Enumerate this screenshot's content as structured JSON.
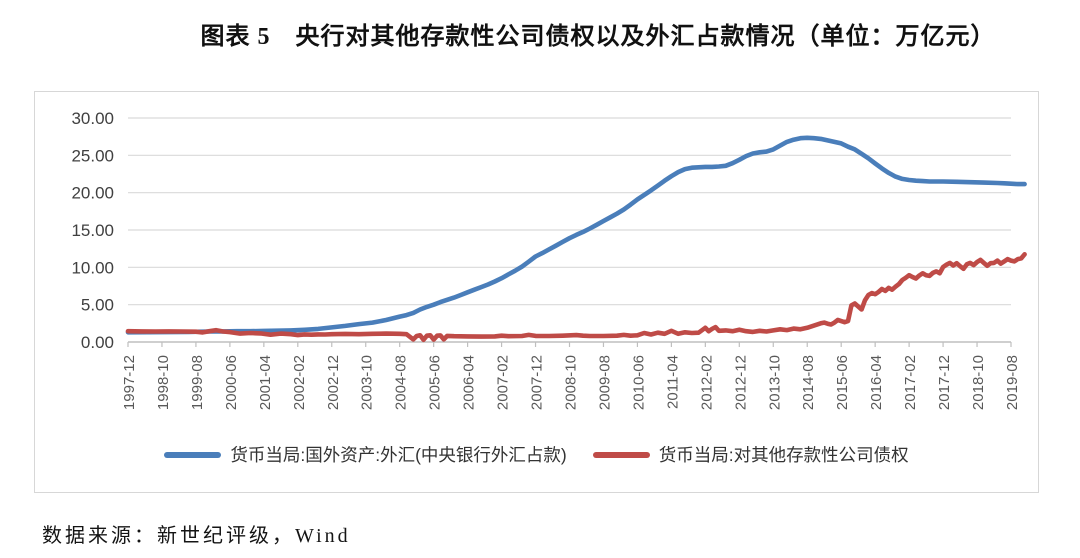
{
  "page": {
    "title": "图表 5　央行对其他存款性公司债权以及外汇占款情况（单位：万亿元）",
    "source_note": "数据来源：新世纪评级，Wind"
  },
  "chart_data": {
    "type": "line",
    "title": "央行对其他存款性公司债权以及外汇占款情况",
    "unit": "万亿元",
    "grid": true,
    "legend_position": "bottom",
    "y_axis": {
      "min": 0,
      "max": 30,
      "step": 5,
      "tick_labels": [
        "30.00",
        "25.00",
        "20.00",
        "15.00",
        "10.00",
        "5.00",
        "0.00"
      ]
    },
    "x_axis": {
      "start": "1997-12",
      "end": "2019-08",
      "tick_step_months": 10,
      "note": "series point x = months since 1997-12",
      "tick_labels": [
        "1997-12",
        "1998-10",
        "1999-08",
        "2000-06",
        "2001-04",
        "2002-02",
        "2002-12",
        "2003-10",
        "2004-08",
        "2005-06",
        "2006-04",
        "2007-02",
        "2007-12",
        "2008-10",
        "2009-08",
        "2010-06",
        "2011-04",
        "2012-02",
        "2012-12",
        "2013-10",
        "2014-08",
        "2015-06",
        "2016-04",
        "2017-02",
        "2017-12",
        "2018-10",
        "2019-08"
      ]
    },
    "series": [
      {
        "name": "货币当局:国外资产:外汇(中央银行外汇占款)",
        "color": "#4a7eba",
        "points": [
          [
            0,
            1.3
          ],
          [
            6,
            1.31
          ],
          [
            12,
            1.33
          ],
          [
            18,
            1.35
          ],
          [
            24,
            1.4
          ],
          [
            28,
            1.42
          ],
          [
            32,
            1.44
          ],
          [
            36,
            1.45
          ],
          [
            40,
            1.48
          ],
          [
            44,
            1.52
          ],
          [
            48,
            1.56
          ],
          [
            52,
            1.63
          ],
          [
            56,
            1.75
          ],
          [
            60,
            1.95
          ],
          [
            64,
            2.15
          ],
          [
            68,
            2.4
          ],
          [
            72,
            2.6
          ],
          [
            76,
            2.95
          ],
          [
            80,
            3.4
          ],
          [
            82,
            3.6
          ],
          [
            84,
            3.9
          ],
          [
            86,
            4.35
          ],
          [
            88,
            4.7
          ],
          [
            90,
            5.0
          ],
          [
            92,
            5.35
          ],
          [
            94,
            5.65
          ],
          [
            96,
            5.95
          ],
          [
            98,
            6.3
          ],
          [
            100,
            6.65
          ],
          [
            102,
            7.0
          ],
          [
            104,
            7.35
          ],
          [
            106,
            7.7
          ],
          [
            108,
            8.1
          ],
          [
            110,
            8.55
          ],
          [
            112,
            9.05
          ],
          [
            114,
            9.55
          ],
          [
            116,
            10.1
          ],
          [
            118,
            10.75
          ],
          [
            120,
            11.45
          ],
          [
            122,
            11.9
          ],
          [
            124,
            12.4
          ],
          [
            126,
            12.9
          ],
          [
            128,
            13.4
          ],
          [
            130,
            13.9
          ],
          [
            132,
            14.35
          ],
          [
            134,
            14.75
          ],
          [
            136,
            15.2
          ],
          [
            138,
            15.7
          ],
          [
            140,
            16.2
          ],
          [
            142,
            16.7
          ],
          [
            144,
            17.2
          ],
          [
            146,
            17.75
          ],
          [
            148,
            18.4
          ],
          [
            150,
            19.1
          ],
          [
            152,
            19.7
          ],
          [
            154,
            20.3
          ],
          [
            156,
            20.95
          ],
          [
            158,
            21.6
          ],
          [
            160,
            22.2
          ],
          [
            162,
            22.75
          ],
          [
            164,
            23.15
          ],
          [
            166,
            23.35
          ],
          [
            168,
            23.4
          ],
          [
            170,
            23.45
          ],
          [
            172,
            23.45
          ],
          [
            174,
            23.5
          ],
          [
            176,
            23.6
          ],
          [
            178,
            23.95
          ],
          [
            180,
            24.4
          ],
          [
            182,
            24.9
          ],
          [
            184,
            25.25
          ],
          [
            186,
            25.4
          ],
          [
            188,
            25.5
          ],
          [
            190,
            25.8
          ],
          [
            192,
            26.3
          ],
          [
            194,
            26.8
          ],
          [
            196,
            27.1
          ],
          [
            198,
            27.3
          ],
          [
            200,
            27.35
          ],
          [
            202,
            27.3
          ],
          [
            204,
            27.2
          ],
          [
            206,
            27.0
          ],
          [
            208,
            26.8
          ],
          [
            210,
            26.6
          ],
          [
            212,
            26.15
          ],
          [
            214,
            25.8
          ],
          [
            216,
            25.2
          ],
          [
            218,
            24.6
          ],
          [
            220,
            23.9
          ],
          [
            222,
            23.25
          ],
          [
            224,
            22.65
          ],
          [
            226,
            22.15
          ],
          [
            228,
            21.85
          ],
          [
            230,
            21.7
          ],
          [
            232,
            21.6
          ],
          [
            234,
            21.55
          ],
          [
            236,
            21.5
          ],
          [
            240,
            21.5
          ],
          [
            244,
            21.45
          ],
          [
            248,
            21.4
          ],
          [
            252,
            21.35
          ],
          [
            256,
            21.3
          ],
          [
            258,
            21.25
          ],
          [
            260,
            21.2
          ],
          [
            262,
            21.15
          ],
          [
            264,
            21.15
          ]
        ]
      },
      {
        "name": "货币当局:对其他存款性公司债权",
        "color": "#bf4b47",
        "points": [
          [
            0,
            1.44
          ],
          [
            4,
            1.42
          ],
          [
            8,
            1.4
          ],
          [
            12,
            1.42
          ],
          [
            16,
            1.4
          ],
          [
            20,
            1.38
          ],
          [
            22,
            1.28
          ],
          [
            24,
            1.45
          ],
          [
            26,
            1.58
          ],
          [
            28,
            1.4
          ],
          [
            30,
            1.32
          ],
          [
            33,
            1.12
          ],
          [
            36,
            1.2
          ],
          [
            39,
            1.15
          ],
          [
            42,
            0.98
          ],
          [
            45,
            1.12
          ],
          [
            48,
            1.05
          ],
          [
            50,
            0.92
          ],
          [
            52,
            1.02
          ],
          [
            54,
            0.98
          ],
          [
            56,
            1.02
          ],
          [
            58,
            1.0
          ],
          [
            60,
            1.05
          ],
          [
            64,
            1.08
          ],
          [
            68,
            1.05
          ],
          [
            72,
            1.1
          ],
          [
            76,
            1.12
          ],
          [
            80,
            1.1
          ],
          [
            82,
            1.05
          ],
          [
            84,
            0.35
          ],
          [
            85,
            0.8
          ],
          [
            86,
            0.9
          ],
          [
            87,
            0.3
          ],
          [
            88,
            0.85
          ],
          [
            89,
            0.9
          ],
          [
            90,
            0.32
          ],
          [
            91,
            0.85
          ],
          [
            92,
            0.88
          ],
          [
            93,
            0.35
          ],
          [
            94,
            0.82
          ],
          [
            96,
            0.78
          ],
          [
            100,
            0.75
          ],
          [
            104,
            0.72
          ],
          [
            108,
            0.75
          ],
          [
            110,
            0.85
          ],
          [
            112,
            0.78
          ],
          [
            116,
            0.8
          ],
          [
            118,
            0.95
          ],
          [
            120,
            0.82
          ],
          [
            124,
            0.8
          ],
          [
            128,
            0.85
          ],
          [
            132,
            0.92
          ],
          [
            134,
            0.85
          ],
          [
            136,
            0.8
          ],
          [
            140,
            0.8
          ],
          [
            144,
            0.85
          ],
          [
            146,
            0.95
          ],
          [
            148,
            0.85
          ],
          [
            150,
            0.9
          ],
          [
            152,
            1.2
          ],
          [
            154,
            1.0
          ],
          [
            156,
            1.25
          ],
          [
            158,
            1.1
          ],
          [
            160,
            1.5
          ],
          [
            162,
            1.1
          ],
          [
            164,
            1.3
          ],
          [
            166,
            1.2
          ],
          [
            168,
            1.25
          ],
          [
            170,
            1.9
          ],
          [
            171,
            1.45
          ],
          [
            172,
            1.75
          ],
          [
            173,
            2.0
          ],
          [
            174,
            1.5
          ],
          [
            176,
            1.55
          ],
          [
            178,
            1.45
          ],
          [
            180,
            1.65
          ],
          [
            182,
            1.45
          ],
          [
            184,
            1.35
          ],
          [
            186,
            1.5
          ],
          [
            188,
            1.4
          ],
          [
            190,
            1.55
          ],
          [
            192,
            1.7
          ],
          [
            194,
            1.6
          ],
          [
            196,
            1.8
          ],
          [
            198,
            1.7
          ],
          [
            200,
            1.9
          ],
          [
            202,
            2.2
          ],
          [
            204,
            2.5
          ],
          [
            205,
            2.6
          ],
          [
            206,
            2.45
          ],
          [
            207,
            2.35
          ],
          [
            208,
            2.6
          ],
          [
            209,
            2.95
          ],
          [
            210,
            2.8
          ],
          [
            211,
            2.65
          ],
          [
            212,
            2.8
          ],
          [
            213,
            4.9
          ],
          [
            214,
            5.15
          ],
          [
            215,
            4.75
          ],
          [
            216,
            4.35
          ],
          [
            217,
            5.6
          ],
          [
            218,
            6.3
          ],
          [
            219,
            6.55
          ],
          [
            220,
            6.4
          ],
          [
            221,
            6.7
          ],
          [
            222,
            7.1
          ],
          [
            223,
            6.85
          ],
          [
            224,
            7.25
          ],
          [
            225,
            7.0
          ],
          [
            226,
            7.4
          ],
          [
            227,
            7.75
          ],
          [
            228,
            8.3
          ],
          [
            229,
            8.6
          ],
          [
            230,
            8.95
          ],
          [
            231,
            8.7
          ],
          [
            232,
            8.5
          ],
          [
            233,
            8.9
          ],
          [
            234,
            9.2
          ],
          [
            235,
            8.95
          ],
          [
            236,
            8.85
          ],
          [
            237,
            9.25
          ],
          [
            238,
            9.45
          ],
          [
            239,
            9.2
          ],
          [
            240,
            10.05
          ],
          [
            241,
            10.35
          ],
          [
            242,
            10.6
          ],
          [
            243,
            10.25
          ],
          [
            244,
            10.55
          ],
          [
            245,
            10.15
          ],
          [
            246,
            9.8
          ],
          [
            247,
            10.4
          ],
          [
            248,
            10.6
          ],
          [
            249,
            10.3
          ],
          [
            250,
            10.7
          ],
          [
            251,
            11.0
          ],
          [
            252,
            10.6
          ],
          [
            253,
            10.2
          ],
          [
            254,
            10.55
          ],
          [
            255,
            10.6
          ],
          [
            256,
            10.9
          ],
          [
            257,
            10.5
          ],
          [
            258,
            10.8
          ],
          [
            259,
            11.1
          ],
          [
            260,
            10.9
          ],
          [
            261,
            10.8
          ],
          [
            262,
            11.1
          ],
          [
            263,
            11.2
          ],
          [
            264,
            11.75
          ]
        ]
      }
    ]
  }
}
